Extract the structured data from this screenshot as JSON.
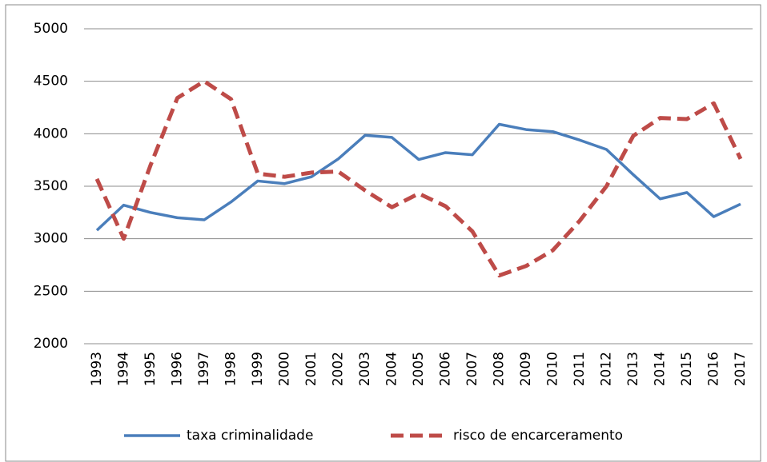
{
  "chart_data": {
    "type": "line",
    "x": [
      1993,
      1994,
      1995,
      1996,
      1997,
      1998,
      1999,
      2000,
      2001,
      2002,
      2003,
      2004,
      2005,
      2006,
      2007,
      2008,
      2009,
      2010,
      2011,
      2012,
      2013,
      2014,
      2015,
      2016,
      2017
    ],
    "series": [
      {
        "name": "taxa criminalidade",
        "color": "#4a7ebb",
        "dash": "solid",
        "values": [
          3080,
          3320,
          3250,
          3200,
          3180,
          3350,
          3550,
          3525,
          3590,
          3760,
          3985,
          3965,
          3755,
          3820,
          3800,
          4090,
          4040,
          4020,
          3940,
          3850,
          3610,
          3380,
          3440,
          3210,
          3330
        ]
      },
      {
        "name": "risco de encarceramento",
        "color": "#be4b48",
        "dash": "dashed",
        "values": [
          3570,
          3000,
          3700,
          4340,
          4500,
          4330,
          3620,
          3590,
          3630,
          3640,
          3460,
          3300,
          3430,
          3310,
          3070,
          2650,
          2740,
          2890,
          3170,
          3500,
          3980,
          4150,
          4140,
          4290,
          3760
        ]
      }
    ],
    "ylim": [
      2000,
      5000
    ],
    "yticks": [
      2000,
      2500,
      3000,
      3500,
      4000,
      4500,
      5000
    ],
    "grid": true,
    "legend": "bottom"
  }
}
